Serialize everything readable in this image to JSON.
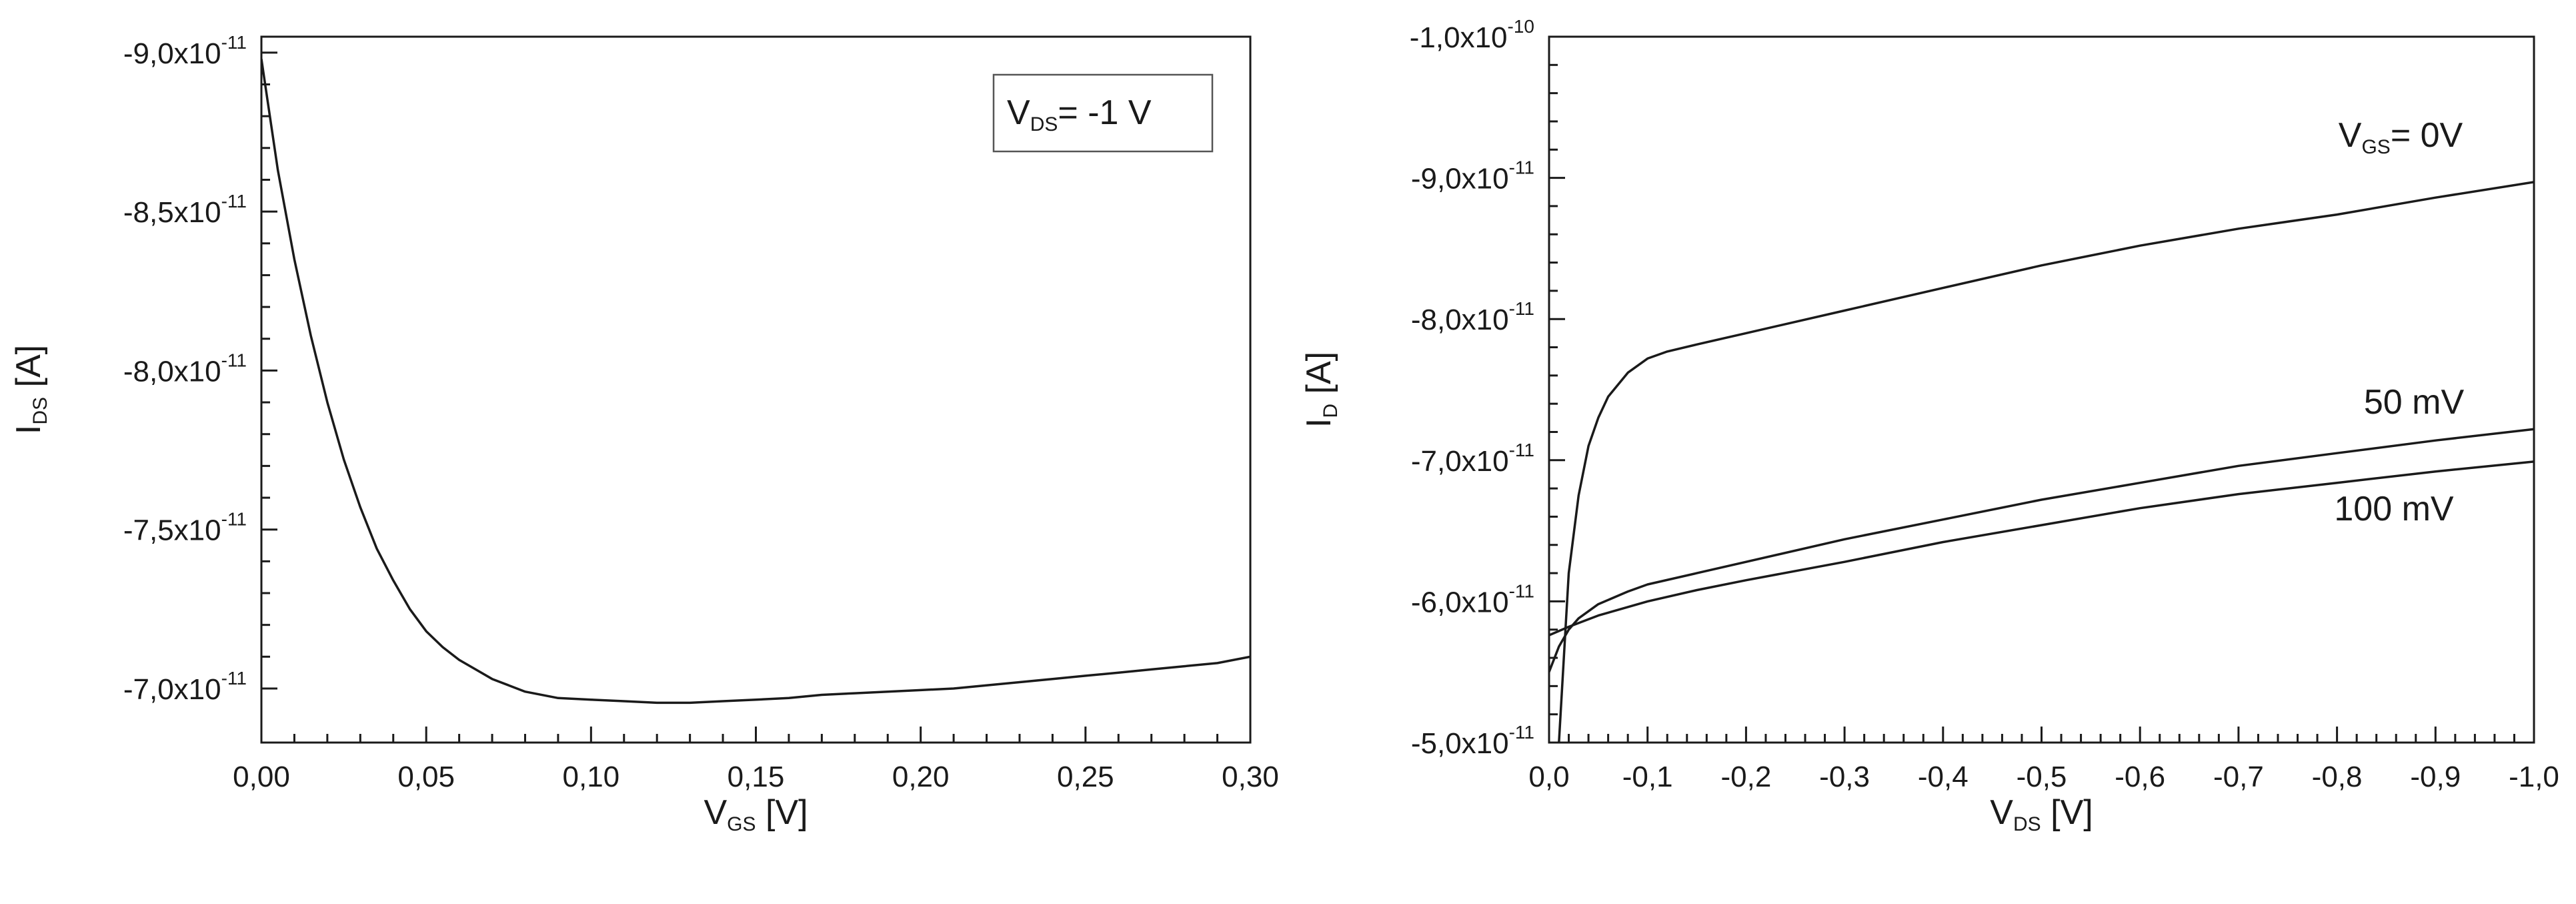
{
  "chart_data": [
    {
      "type": "line",
      "id": "left",
      "xlabel": {
        "main": "V",
        "sub": "GS",
        "rest": " [V]"
      },
      "ylabel": {
        "main": "I",
        "sub": "DS",
        "rest": " [A]"
      },
      "xlim": [
        0,
        0.3
      ],
      "ylim": [
        -6.83e-11,
        -9.05e-11
      ],
      "x_ticks": [
        0,
        0.05,
        0.1,
        0.15,
        0.2,
        0.25,
        0.3
      ],
      "x_tick_labels": [
        "0,00",
        "0,05",
        "0,10",
        "0,15",
        "0,20",
        "0,25",
        "0,30"
      ],
      "y_ticks": [
        -9e-11,
        -8.5e-11,
        -8e-11,
        -7.5e-11,
        -7e-11
      ],
      "y_tick_labels": [
        {
          "mant": "-9,0x10",
          "exp": "-11"
        },
        {
          "mant": "-8,5x10",
          "exp": "-11"
        },
        {
          "mant": "-8,0x10",
          "exp": "-11"
        },
        {
          "mant": "-7,5x10",
          "exp": "-11"
        },
        {
          "mant": "-7,0x10",
          "exp": "-11"
        }
      ],
      "annotation": {
        "main": "V",
        "sub": "DS",
        "rest": "= -1 V"
      },
      "series": [
        {
          "x": [
            0,
            0.005,
            0.01,
            0.015,
            0.02,
            0.025,
            0.03,
            0.035,
            0.04,
            0.045,
            0.05,
            0.055,
            0.06,
            0.065,
            0.07,
            0.075,
            0.08,
            0.09,
            0.1,
            0.11,
            0.12,
            0.13,
            0.14,
            0.15,
            0.16,
            0.17,
            0.18,
            0.19,
            0.2,
            0.21,
            0.22,
            0.23,
            0.24,
            0.25,
            0.26,
            0.27,
            0.28,
            0.29,
            0.3
          ],
          "y": [
            -8.98e-11,
            -8.63e-11,
            -8.35e-11,
            -8.11e-11,
            -7.9e-11,
            -7.72e-11,
            -7.57e-11,
            -7.44e-11,
            -7.34e-11,
            -7.25e-11,
            -7.18e-11,
            -7.13e-11,
            -7.09e-11,
            -7.06e-11,
            -7.03e-11,
            -7.01e-11,
            -6.99e-11,
            -6.97e-11,
            -6.965e-11,
            -6.96e-11,
            -6.955e-11,
            -6.955e-11,
            -6.96e-11,
            -6.965e-11,
            -6.97e-11,
            -6.98e-11,
            -6.985e-11,
            -6.99e-11,
            -6.995e-11,
            -7e-11,
            -7.01e-11,
            -7.02e-11,
            -7.03e-11,
            -7.04e-11,
            -7.05e-11,
            -7.06e-11,
            -7.07e-11,
            -7.08e-11,
            -7.1e-11
          ]
        }
      ]
    },
    {
      "type": "line",
      "id": "right",
      "xlabel": {
        "main": "V",
        "sub": "DS",
        "rest": " [V]"
      },
      "ylabel": {
        "main": "I",
        "sub": "D",
        "rest": " [A]"
      },
      "xlim": [
        0,
        -1.0
      ],
      "ylim": [
        -5e-11,
        -1e-10
      ],
      "x_ticks": [
        0,
        -0.1,
        -0.2,
        -0.3,
        -0.4,
        -0.5,
        -0.6,
        -0.7,
        -0.8,
        -0.9,
        -1.0
      ],
      "x_tick_labels": [
        "0,0",
        "-0,1",
        "-0,2",
        "-0,3",
        "-0,4",
        "-0,5",
        "-0,6",
        "-0,7",
        "-0,8",
        "-0,9",
        "-1,0"
      ],
      "y_ticks": [
        -5e-11,
        -6e-11,
        -7e-11,
        -8e-11,
        -9e-11,
        -1e-10
      ],
      "y_tick_labels": [
        {
          "mant": "-5,0x10",
          "exp": "-11"
        },
        {
          "mant": "-6,0x10",
          "exp": "-11"
        },
        {
          "mant": "-7,0x10",
          "exp": "-11"
        },
        {
          "mant": "-8,0x10",
          "exp": "-11"
        },
        {
          "mant": "-9,0x10",
          "exp": "-11"
        },
        {
          "mant": "-1,0x10",
          "exp": "-10"
        }
      ],
      "series_labels": [
        {
          "main": "V",
          "sub": "GS",
          "rest": "= 0V"
        },
        {
          "main": "",
          "sub": "",
          "rest": "50 mV"
        },
        {
          "main": "",
          "sub": "",
          "rest": "100 mV"
        }
      ],
      "series": [
        {
          "x": [
            -0.01,
            -0.02,
            -0.03,
            -0.04,
            -0.05,
            -0.06,
            -0.08,
            -0.1,
            -0.12,
            -0.15,
            -0.2,
            -0.3,
            -0.4,
            -0.5,
            -0.6,
            -0.7,
            -0.8,
            -0.9,
            -1.0
          ],
          "y": [
            -5e-11,
            -6.2e-11,
            -6.75e-11,
            -7.1e-11,
            -7.3e-11,
            -7.45e-11,
            -7.62e-11,
            -7.72e-11,
            -7.77e-11,
            -7.82e-11,
            -7.9e-11,
            -8.06e-11,
            -8.22e-11,
            -8.38e-11,
            -8.52e-11,
            -8.64e-11,
            -8.74e-11,
            -8.86e-11,
            -8.97e-11
          ]
        },
        {
          "x": [
            0,
            -0.01,
            -0.02,
            -0.03,
            -0.05,
            -0.08,
            -0.1,
            -0.15,
            -0.2,
            -0.3,
            -0.4,
            -0.5,
            -0.6,
            -0.7,
            -0.8,
            -0.9,
            -1.0
          ],
          "y": [
            -5.5e-11,
            -5.68e-11,
            -5.8e-11,
            -5.88e-11,
            -5.98e-11,
            -6.07e-11,
            -6.12e-11,
            -6.2e-11,
            -6.28e-11,
            -6.44e-11,
            -6.58e-11,
            -6.72e-11,
            -6.84e-11,
            -6.96e-11,
            -7.05e-11,
            -7.14e-11,
            -7.22e-11
          ]
        },
        {
          "x": [
            0,
            -0.02,
            -0.05,
            -0.1,
            -0.15,
            -0.2,
            -0.3,
            -0.4,
            -0.5,
            -0.6,
            -0.7,
            -0.8,
            -0.9,
            -1.0
          ],
          "y": [
            -5.76e-11,
            -5.82e-11,
            -5.9e-11,
            -6e-11,
            -6.08e-11,
            -6.15e-11,
            -6.28e-11,
            -6.42e-11,
            -6.54e-11,
            -6.66e-11,
            -6.76e-11,
            -6.84e-11,
            -6.92e-11,
            -6.99e-11
          ]
        }
      ]
    }
  ]
}
